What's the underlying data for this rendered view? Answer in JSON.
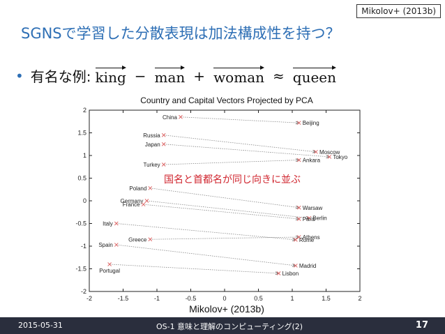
{
  "slide": {
    "cite_top": "Mikolov+ (2013b)",
    "title": "SGNSで学習した分散表現は加法構成性を持つ？",
    "bullet_prefix": "有名な例:",
    "terms": [
      "king",
      "man",
      "woman",
      "queen"
    ],
    "ops": [
      "−",
      "+",
      "≈"
    ],
    "cite_bottom": "Mikolov+ (2013b)"
  },
  "footer": {
    "date": "2015-05-31",
    "talk": "OS-1 意味と理解のコンピューティング(2)",
    "page": "17"
  },
  "colors": {
    "title": "#2e6fb5",
    "annotation": "#d0262f",
    "marker": "#e06a6a",
    "footer_bg": "#2a2e3d"
  },
  "chart_data": {
    "type": "scatter",
    "title": "Country and Capital Vectors Projected by PCA",
    "annotation": "国名と首都名が同じ向きに並ぶ",
    "xlim": [
      -2,
      2
    ],
    "ylim": [
      -2,
      2
    ],
    "xticks": [
      "-2",
      "-1.5",
      "-1",
      "-0.5",
      "0",
      "0.5",
      "1",
      "1.5",
      "2"
    ],
    "yticks": [
      "2",
      "1.5",
      "1",
      "0.5",
      "0",
      "-0.5",
      "-1",
      "-1.5",
      "-2"
    ],
    "points": [
      {
        "label": "China",
        "x": -0.65,
        "y": 1.85,
        "anchor": "end"
      },
      {
        "label": "Beijing",
        "x": 1.1,
        "y": 1.72,
        "anchor": "start"
      },
      {
        "label": "Russia",
        "x": -0.9,
        "y": 1.45,
        "anchor": "end"
      },
      {
        "label": "Moscow",
        "x": 1.35,
        "y": 1.08,
        "anchor": "start"
      },
      {
        "label": "Japan",
        "x": -0.9,
        "y": 1.25,
        "anchor": "end"
      },
      {
        "label": "Tokyo",
        "x": 1.55,
        "y": 0.97,
        "anchor": "start"
      },
      {
        "label": "Turkey",
        "x": -0.9,
        "y": 0.8,
        "anchor": "end"
      },
      {
        "label": "Ankara",
        "x": 1.1,
        "y": 0.9,
        "anchor": "start"
      },
      {
        "label": "Poland",
        "x": -1.1,
        "y": 0.28,
        "anchor": "end"
      },
      {
        "label": "Germany",
        "x": -1.15,
        "y": 0.0,
        "anchor": "end"
      },
      {
        "label": "France",
        "x": -1.2,
        "y": -0.08,
        "anchor": "end"
      },
      {
        "label": "Warsaw",
        "x": 1.1,
        "y": -0.15,
        "anchor": "start"
      },
      {
        "label": "Berlin",
        "x": 1.25,
        "y": -0.38,
        "anchor": "start"
      },
      {
        "label": "Paris",
        "x": 1.1,
        "y": -0.4,
        "anchor": "start"
      },
      {
        "label": "Italy",
        "x": -1.6,
        "y": -0.5,
        "anchor": "end"
      },
      {
        "label": "Greece",
        "x": -1.1,
        "y": -0.85,
        "anchor": "end"
      },
      {
        "label": "Athens",
        "x": 1.1,
        "y": -0.8,
        "anchor": "start"
      },
      {
        "label": "Rome",
        "x": 1.05,
        "y": -0.86,
        "anchor": "start"
      },
      {
        "label": "Spain",
        "x": -1.6,
        "y": -0.97,
        "anchor": "end"
      },
      {
        "label": "Portugal",
        "x": -1.7,
        "y": -1.4,
        "anchor": "middle"
      },
      {
        "label": "Madrid",
        "x": 1.05,
        "y": -1.43,
        "anchor": "start"
      },
      {
        "label": "Lisbon",
        "x": 0.8,
        "y": -1.6,
        "anchor": "start"
      }
    ],
    "arrows": [
      {
        "from": "China",
        "to": "Beijing"
      },
      {
        "from": "Russia",
        "to": "Moscow"
      },
      {
        "from": "Japan",
        "to": "Tokyo"
      },
      {
        "from": "Turkey",
        "to": "Ankara"
      },
      {
        "from": "Poland",
        "to": "Warsaw"
      },
      {
        "from": "Germany",
        "to": "Berlin"
      },
      {
        "from": "France",
        "to": "Paris"
      },
      {
        "from": "Italy",
        "to": "Rome"
      },
      {
        "from": "Greece",
        "to": "Athens"
      },
      {
        "from": "Spain",
        "to": "Madrid"
      },
      {
        "from": "Portugal",
        "to": "Lisbon"
      }
    ]
  }
}
